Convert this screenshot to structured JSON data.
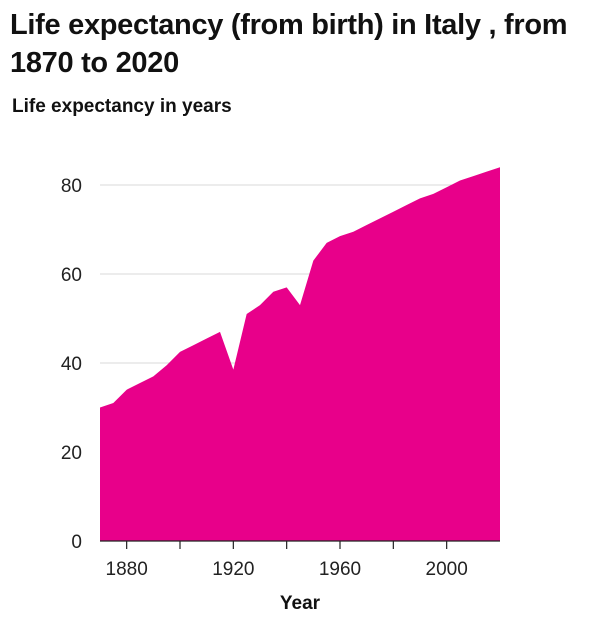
{
  "chart_data": {
    "type": "area",
    "title": "Life expectancy (from birth) in Italy , from 1870 to 2020",
    "ylabel": "Life expectancy in years",
    "xlabel": "Year",
    "color": "#e8008a",
    "xlim": [
      1870,
      2020
    ],
    "ylim": [
      0,
      80
    ],
    "grid": true,
    "xticks": [
      1880,
      1920,
      1960,
      2000
    ],
    "xtick_marks": [
      1880,
      1900,
      1920,
      1940,
      1960,
      1980,
      2000
    ],
    "yticks": [
      0,
      20,
      40,
      60,
      80
    ],
    "series": [
      {
        "x": [
          1870,
          1875,
          1880,
          1885,
          1890,
          1895,
          1900,
          1905,
          1910,
          1915,
          1920,
          1925,
          1930,
          1935,
          1940,
          1945,
          1950,
          1955,
          1960,
          1965,
          1970,
          1975,
          1980,
          1985,
          1990,
          1995,
          2000,
          2005,
          2010,
          2015,
          2020
        ],
        "y": [
          30,
          31,
          34,
          35.5,
          37,
          39.5,
          42.5,
          44,
          45.5,
          47,
          38.5,
          51,
          53,
          56,
          57,
          53,
          63,
          67,
          68.5,
          69.5,
          71,
          72.5,
          74,
          75.5,
          77,
          78,
          79.5,
          81,
          82,
          83,
          84
        ]
      }
    ]
  }
}
